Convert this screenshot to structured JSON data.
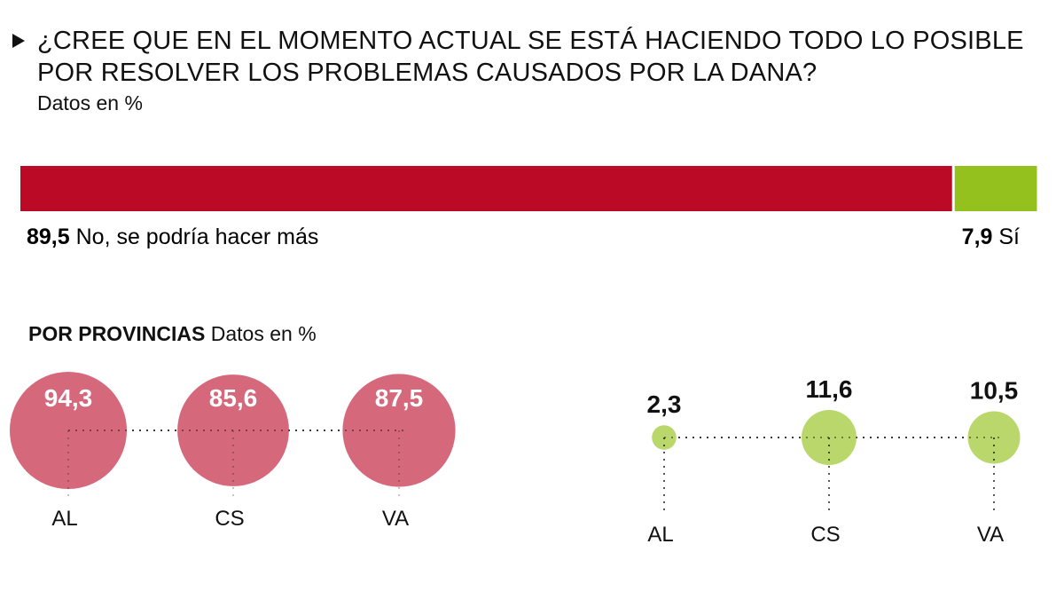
{
  "title": "¿CREE QUE EN EL MOMENTO ACTUAL SE ESTÁ HACIENDO TODO LO POSIBLE POR RESOLVER LOS PROBLEMAS CAUSADOS POR LA DANA?",
  "subtitle": "Datos en %",
  "provinces_heading": "POR PROVINCIAS",
  "provinces_subheading": "Datos en %",
  "colors": {
    "no": "#bb0a26",
    "si": "#95c11f",
    "no_light": "#d6687b",
    "si_light": "#b9d76a"
  },
  "chart_data": [
    {
      "type": "bar",
      "orientation": "horizontal-stacked",
      "series": [
        {
          "name": "No, se podría hacer más",
          "value": 89.5,
          "label": "89,5"
        },
        {
          "name": "Sí",
          "value": 7.9,
          "label": "7,9"
        }
      ]
    },
    {
      "type": "bubble",
      "series_name": "No, se podría hacer más",
      "categories": [
        "AL",
        "CS",
        "VA"
      ],
      "values": [
        94.3,
        85.6,
        87.5
      ],
      "labels": [
        "94,3",
        "85,6",
        "87,5"
      ]
    },
    {
      "type": "bubble",
      "series_name": "Sí",
      "categories": [
        "AL",
        "CS",
        "VA"
      ],
      "values": [
        2.3,
        11.6,
        10.5
      ],
      "labels": [
        "2,3",
        "11,6",
        "10,5"
      ]
    }
  ]
}
